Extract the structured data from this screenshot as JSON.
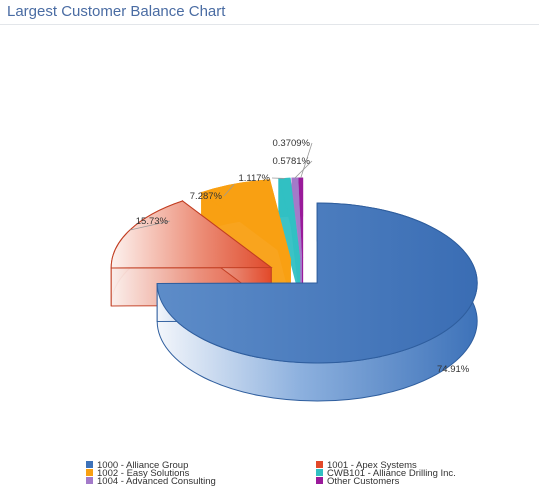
{
  "page": {
    "title": "Largest Customer Balance Chart"
  },
  "chart_data": {
    "type": "pie",
    "title": "Largest Customer Balance Chart",
    "style": "3d-exploded",
    "legend_position": "bottom",
    "slices": [
      {
        "name": "1000 - Alliance Group",
        "value": 74.91,
        "label": "74.91%",
        "color": "#3d72b9"
      },
      {
        "name": "1001 - Apex Systems",
        "value": 15.73,
        "label": "15.73%",
        "color": "#e2492a"
      },
      {
        "name": "1002 - Easy Solutions",
        "value": 7.287,
        "label": "7.287%",
        "color": "#f9a012"
      },
      {
        "name": "CWB101 - Alliance Drilling Inc.",
        "value": 1.117,
        "label": "1.117%",
        "color": "#31c0c3"
      },
      {
        "name": "1004 - Advanced Consulting",
        "value": 0.5781,
        "label": "0.5781%",
        "color": "#a37ac9"
      },
      {
        "name": "Other Customers",
        "value": 0.3709,
        "label": "0.3709%",
        "color": "#9a1a9a"
      }
    ]
  }
}
